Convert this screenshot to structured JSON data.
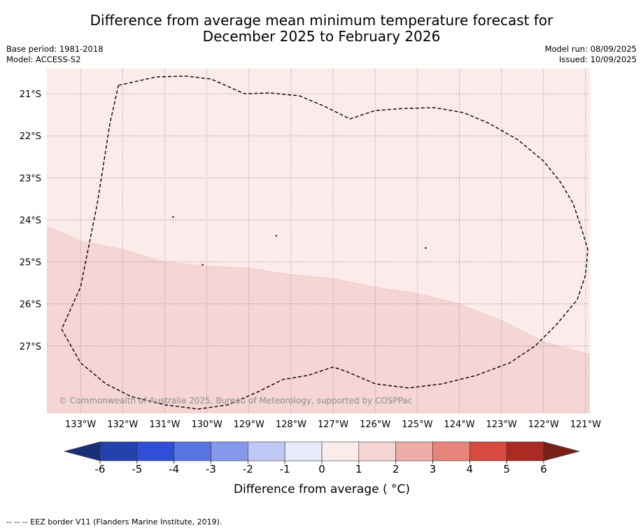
{
  "title_line1": "Difference from average mean minimum temperature forecast for",
  "title_line2": "December 2025 to February 2026",
  "base_period": "Base period: 1981-2018",
  "model": "Model: ACCESS-S2",
  "model_run": "Model run: 08/09/2025",
  "issued": "Issued: 10/09/2025",
  "copyright": "© Commonwealth of Australia 2025, Bureau of Meteorology, supported by COSPPac",
  "footer": "--  --  -- EEZ border V11 (Flanders Marine Institute, 2019).",
  "chart_data": {
    "type": "heatmap",
    "lon_ticks": [
      "133°W",
      "132°W",
      "131°W",
      "130°W",
      "129°W",
      "128°W",
      "127°W",
      "126°W",
      "125°W",
      "124°W",
      "123°W",
      "122°W",
      "121°W"
    ],
    "lat_ticks": [
      "21°S",
      "22°S",
      "23°S",
      "24°S",
      "25°S",
      "26°S",
      "27°S"
    ],
    "xlim": [
      -133.8,
      -120.9
    ],
    "ylim": [
      -28.6,
      -20.4
    ],
    "anomaly_regions": [
      {
        "category": "0 to 1",
        "color": "#fbeceb",
        "region": "north"
      },
      {
        "category": "1 to 2",
        "color": "#f5d6d5",
        "region": "south",
        "boundary_lonlat": [
          [
            -133.8,
            -24.15
          ],
          [
            -133.0,
            -24.5
          ],
          [
            -132.0,
            -24.7
          ],
          [
            -131.0,
            -25.0
          ],
          [
            -130.0,
            -25.1
          ],
          [
            -129.0,
            -25.15
          ],
          [
            -128.0,
            -25.3
          ],
          [
            -127.0,
            -25.4
          ],
          [
            -126.0,
            -25.6
          ],
          [
            -125.0,
            -25.75
          ],
          [
            -124.0,
            -26.0
          ],
          [
            -123.0,
            -26.4
          ],
          [
            -122.0,
            -26.9
          ],
          [
            -120.9,
            -27.2
          ]
        ]
      }
    ],
    "eez_border": [
      [
        -132.1,
        -20.8
      ],
      [
        -131.2,
        -20.6
      ],
      [
        -130.5,
        -20.58
      ],
      [
        -129.9,
        -20.65
      ],
      [
        -129.1,
        -21.0
      ],
      [
        -128.5,
        -20.98
      ],
      [
        -127.8,
        -21.05
      ],
      [
        -127.2,
        -21.3
      ],
      [
        -126.6,
        -21.6
      ],
      [
        -126.0,
        -21.4
      ],
      [
        -125.3,
        -21.35
      ],
      [
        -124.6,
        -21.33
      ],
      [
        -123.9,
        -21.45
      ],
      [
        -123.3,
        -21.7
      ],
      [
        -122.6,
        -22.1
      ],
      [
        -122.0,
        -22.6
      ],
      [
        -121.6,
        -23.1
      ],
      [
        -121.3,
        -23.6
      ],
      [
        -121.1,
        -24.2
      ],
      [
        -120.95,
        -24.7
      ],
      [
        -121.0,
        -25.3
      ],
      [
        -121.2,
        -25.9
      ],
      [
        -121.7,
        -26.5
      ],
      [
        -122.2,
        -27.0
      ],
      [
        -122.8,
        -27.4
      ],
      [
        -123.6,
        -27.7
      ],
      [
        -124.4,
        -27.9
      ],
      [
        -125.2,
        -28.0
      ],
      [
        -126.0,
        -27.9
      ],
      [
        -126.7,
        -27.6
      ],
      [
        -127.0,
        -27.5
      ],
      [
        -127.6,
        -27.7
      ],
      [
        -128.2,
        -27.8
      ],
      [
        -128.8,
        -28.1
      ],
      [
        -129.5,
        -28.4
      ],
      [
        -130.2,
        -28.5
      ],
      [
        -131.0,
        -28.4
      ],
      [
        -131.8,
        -28.2
      ],
      [
        -132.4,
        -27.9
      ],
      [
        -133.0,
        -27.4
      ],
      [
        -133.45,
        -26.6
      ],
      [
        -133.0,
        -25.6
      ],
      [
        -132.6,
        -23.6
      ],
      [
        -132.3,
        -21.7
      ],
      [
        -132.1,
        -20.8
      ]
    ],
    "colorbar": {
      "label": "Difference from average ( °C)",
      "ticks": [
        "-6",
        "-5",
        "-4",
        "-3",
        "-2",
        "-1",
        "0",
        "1",
        "2",
        "3",
        "4",
        "5",
        "6"
      ],
      "colors": [
        "#2442ad",
        "#2f4fd8",
        "#5675e2",
        "#8698ec",
        "#c0c8f4",
        "#e8ebfb",
        "#fbeceb",
        "#f5d6d5",
        "#eeaca6",
        "#e8847c",
        "#d84a40",
        "#ab2a24"
      ],
      "under_color": "#1b2f78",
      "over_color": "#782018"
    }
  }
}
